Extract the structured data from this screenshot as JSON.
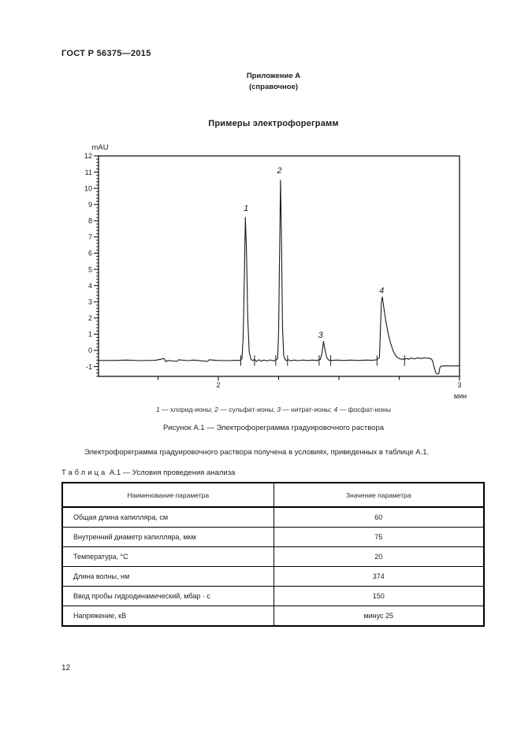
{
  "page": {
    "header": "ГОСТ Р 56375—2015",
    "annex_title": "Приложение А",
    "annex_subtitle": "(справочное)",
    "section_title": "Примеры электрофореграмм",
    "page_number": "12"
  },
  "figure": {
    "caption": "Рисунок А.1 — Электрофореграмма градуировочного раствора"
  },
  "intro_paragraph": "Электрофореграмма градуировочного раствора получена в условиях, приведенных в таблице А.1.",
  "table": {
    "title_word": "Таблица",
    "title_rest": "А.1 — Условия проведения анализа",
    "headers": [
      "Наименование параметра",
      "Значение параметра"
    ],
    "rows": [
      [
        "Общая длина капилляра, см",
        "60"
      ],
      [
        "Внутренний диаметр капилляра, мкм",
        "75"
      ],
      [
        "Температура, °С",
        "20"
      ],
      [
        "Длина волны, нм",
        "374"
      ],
      [
        "Ввод пробы гидродинамический, мбар · с",
        "150"
      ],
      [
        "Напряжение, кВ",
        "минус 25"
      ]
    ]
  },
  "chart_data": {
    "type": "line",
    "title": "",
    "xlabel": "мин",
    "ylabel": "mAU",
    "xlim": [
      1.503,
      3.0
    ],
    "ylim": [
      -1.6,
      12
    ],
    "x_major_ticks": [
      2,
      3
    ],
    "x_minor_ticks": [
      1.75,
      2.25,
      2.5,
      2.75
    ],
    "y_major_tick_step": 1,
    "y_minor_tick_step": 0.2,
    "grid": "off",
    "baseline_mAU": -0.62,
    "peaks": [
      {
        "num": "1",
        "ion": "хлорид-ионы",
        "time_min": 2.11,
        "apex_mAU": 8.2,
        "label_at": [
          2.115,
          8.6
        ]
      },
      {
        "num": "2",
        "ion": "сульфат-ионы",
        "time_min": 2.26,
        "apex_mAU": 10.5,
        "label_at": [
          2.253,
          10.93
        ]
      },
      {
        "num": "3",
        "ion": "нитрат-ионы",
        "time_min": 2.44,
        "apex_mAU": 0.55,
        "label_at": [
          2.424,
          0.78
        ]
      },
      {
        "num": "4",
        "ion": "фосфат-ионы",
        "time_min": 2.68,
        "apex_mAU": 3.3,
        "label_at": [
          2.677,
          3.52
        ]
      }
    ],
    "integration_marks": [
      2.093,
      2.15,
      2.238,
      2.287,
      2.418,
      2.466,
      2.658,
      2.772
    ],
    "trace": [
      [
        1.503,
        -0.62
      ],
      [
        1.56,
        -0.62
      ],
      [
        1.62,
        -0.6
      ],
      [
        1.68,
        -0.63
      ],
      [
        1.74,
        -0.61
      ],
      [
        1.775,
        -0.5
      ],
      [
        1.782,
        -0.7
      ],
      [
        1.79,
        -0.62
      ],
      [
        1.828,
        -0.68
      ],
      [
        1.835,
        -0.58
      ],
      [
        1.875,
        -0.63
      ],
      [
        1.9,
        -0.6
      ],
      [
        1.955,
        -0.68
      ],
      [
        1.962,
        -0.58
      ],
      [
        2.0,
        -0.62
      ],
      [
        2.04,
        -0.63
      ],
      [
        2.07,
        -0.61
      ],
      [
        2.09,
        -0.62
      ],
      [
        2.098,
        -0.5
      ],
      [
        2.103,
        0.8
      ],
      [
        2.108,
        4.5
      ],
      [
        2.112,
        8.2
      ],
      [
        2.117,
        6.0
      ],
      [
        2.122,
        2.0
      ],
      [
        2.128,
        -0.1
      ],
      [
        2.135,
        -0.55
      ],
      [
        2.142,
        -0.62
      ],
      [
        2.15,
        -0.56
      ],
      [
        2.158,
        -0.68
      ],
      [
        2.168,
        -0.58
      ],
      [
        2.178,
        -0.66
      ],
      [
        2.19,
        -0.6
      ],
      [
        2.202,
        -0.65
      ],
      [
        2.215,
        -0.59
      ],
      [
        2.228,
        -0.64
      ],
      [
        2.238,
        -0.61
      ],
      [
        2.246,
        -0.5
      ],
      [
        2.25,
        1.2
      ],
      [
        2.254,
        6.0
      ],
      [
        2.258,
        10.5
      ],
      [
        2.262,
        6.5
      ],
      [
        2.266,
        1.5
      ],
      [
        2.271,
        -0.3
      ],
      [
        2.277,
        -0.58
      ],
      [
        2.283,
        -0.63
      ],
      [
        2.29,
        -0.58
      ],
      [
        2.3,
        -0.64
      ],
      [
        2.315,
        -0.6
      ],
      [
        2.33,
        -0.63
      ],
      [
        2.35,
        -0.6
      ],
      [
        2.37,
        -0.62
      ],
      [
        2.39,
        -0.6
      ],
      [
        2.41,
        -0.62
      ],
      [
        2.423,
        -0.55
      ],
      [
        2.43,
        -0.15
      ],
      [
        2.436,
        0.55
      ],
      [
        2.442,
        0.05
      ],
      [
        2.449,
        -0.42
      ],
      [
        2.457,
        -0.6
      ],
      [
        2.47,
        -0.62
      ],
      [
        2.49,
        -0.6
      ],
      [
        2.52,
        -0.62
      ],
      [
        2.55,
        -0.6
      ],
      [
        2.58,
        -0.62
      ],
      [
        2.61,
        -0.6
      ],
      [
        2.64,
        -0.61
      ],
      [
        2.655,
        -0.58
      ],
      [
        2.668,
        -0.45
      ],
      [
        2.672,
        1.2
      ],
      [
        2.676,
        3.0
      ],
      [
        2.68,
        3.3
      ],
      [
        2.687,
        2.55
      ],
      [
        2.695,
        1.75
      ],
      [
        2.704,
        1.05
      ],
      [
        2.714,
        0.45
      ],
      [
        2.725,
        -0.05
      ],
      [
        2.738,
        -0.38
      ],
      [
        2.752,
        -0.52
      ],
      [
        2.768,
        -0.55
      ],
      [
        2.78,
        -0.5
      ],
      [
        2.79,
        -0.55
      ],
      [
        2.8,
        -0.47
      ],
      [
        2.812,
        -0.53
      ],
      [
        2.825,
        -0.46
      ],
      [
        2.84,
        -0.5
      ],
      [
        2.855,
        -0.46
      ],
      [
        2.87,
        -0.48
      ],
      [
        2.88,
        -0.5
      ],
      [
        2.888,
        -0.62
      ],
      [
        2.895,
        -1.05
      ],
      [
        2.902,
        -1.4
      ],
      [
        2.908,
        -1.46
      ],
      [
        2.914,
        -1.44
      ],
      [
        2.918,
        -1.1
      ],
      [
        2.922,
        -0.98
      ],
      [
        2.94,
        -0.95
      ],
      [
        2.97,
        -0.96
      ],
      [
        3.0,
        -0.95
      ]
    ],
    "colors": {
      "line": "#1a1a1a",
      "axis": "#000000",
      "text": "#1c1c1c"
    }
  }
}
